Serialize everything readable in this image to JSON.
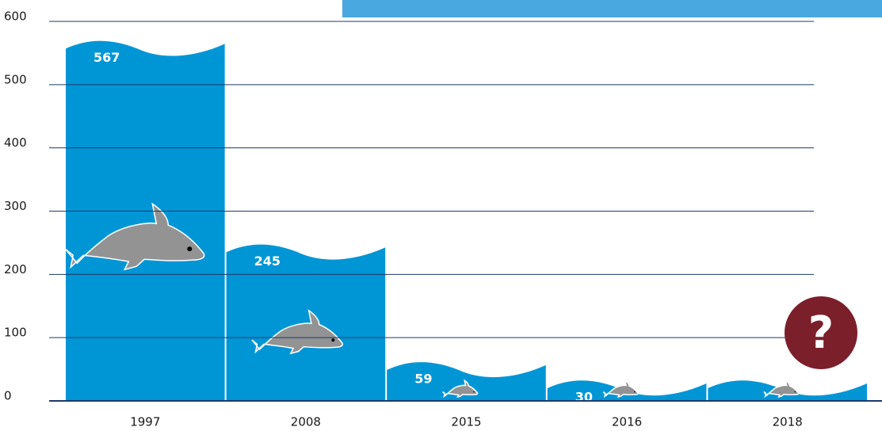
{
  "chart_data": {
    "type": "bar",
    "categories": [
      "1997",
      "2008",
      "2015",
      "2016",
      "2018"
    ],
    "values": [
      567,
      245,
      59,
      30,
      30
    ],
    "value_labels": [
      "567",
      "245",
      "59",
      "30",
      null
    ],
    "color": "#0096d6",
    "ylim": [
      0,
      600
    ],
    "yticks": [
      0,
      100,
      200,
      300,
      400,
      500,
      600
    ],
    "grid": true,
    "annotation": "?"
  }
}
